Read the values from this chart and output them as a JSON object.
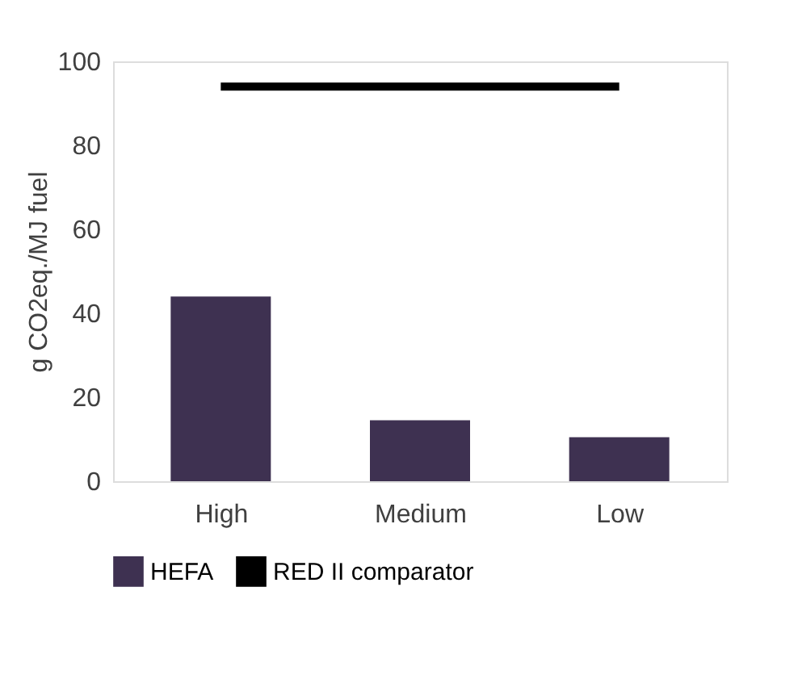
{
  "chart_data": {
    "type": "bar",
    "ylabel": "g CO2eq./MJ fuel",
    "categories": [
      "High",
      "Medium",
      "Low"
    ],
    "series": [
      {
        "name": "HEFA",
        "color": "#3e3151",
        "values": [
          44,
          14.5,
          10.5
        ]
      },
      {
        "name": "RED II comparator",
        "type": "line",
        "color": "#000000",
        "values": [
          94,
          94,
          94
        ]
      }
    ],
    "ylim": [
      0,
      100
    ],
    "yticks": [
      0,
      20,
      40,
      60,
      80,
      100
    ],
    "grid": false,
    "legend": "bottom"
  }
}
